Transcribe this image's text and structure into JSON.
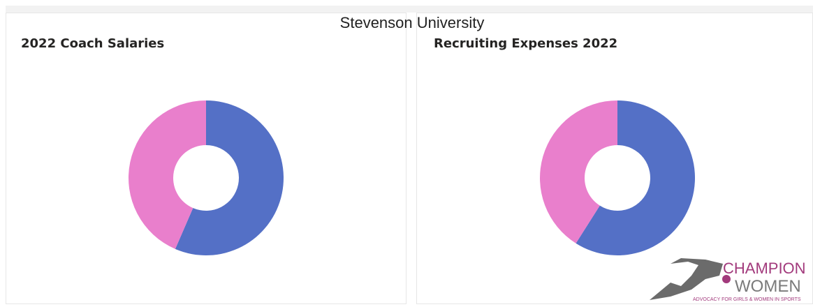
{
  "title": "Stevenson University",
  "chart_data": [
    {
      "type": "donut",
      "title": "2022 Coach Salaries",
      "values": [
        56.5,
        43.5
      ],
      "colors": [
        "#5470c6",
        "#e97fcc"
      ]
    },
    {
      "type": "donut",
      "title": "Recruiting Expenses 2022",
      "values": [
        59,
        41
      ],
      "colors": [
        "#5470c6",
        "#e97fcc"
      ]
    }
  ],
  "logo": {
    "line1": "CHAMPION",
    "line2": "WOMEN",
    "tagline": "ADVOCACY FOR GIRLS & WOMEN IN SPORTS"
  }
}
